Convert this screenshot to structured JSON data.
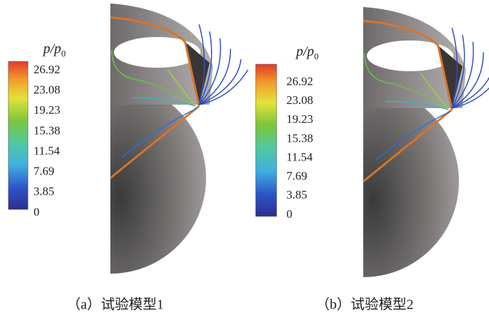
{
  "panels": [
    {
      "colorbar": {
        "label": {
          "main": "p/p",
          "sub": "0"
        },
        "ticks": [
          26.92,
          23.08,
          19.23,
          15.38,
          11.54,
          7.69,
          3.85,
          0
        ]
      },
      "caption": "（a）试验模型1"
    },
    {
      "colorbar": {
        "label": {
          "main": "p/p",
          "sub": "0"
        },
        "ticks": [
          26.92,
          23.08,
          19.23,
          15.38,
          11.54,
          7.69,
          3.85,
          0
        ]
      },
      "caption": "（b）试验模型2"
    }
  ]
}
